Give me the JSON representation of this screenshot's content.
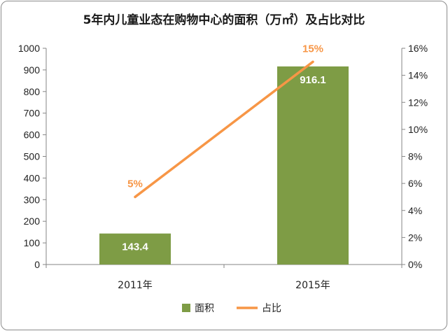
{
  "chart_data": {
    "type": "bar",
    "title": "5年内儿童业态在购物中心的面积（万㎡）及占比对比",
    "categories": [
      "2011年",
      "2015年"
    ],
    "series": [
      {
        "name": "面积",
        "type": "bar",
        "axis": "left",
        "color": "#7e9c45",
        "values": [
          143.4,
          916.1
        ],
        "labels": [
          "143.4",
          "916.1"
        ]
      },
      {
        "name": "占比",
        "type": "line",
        "axis": "right",
        "color": "#f79646",
        "values": [
          5,
          15
        ],
        "labels": [
          "5%",
          "15%"
        ]
      }
    ],
    "y_left": {
      "min": 0,
      "max": 1000,
      "step": 100,
      "ticks": [
        "0",
        "100",
        "200",
        "300",
        "400",
        "500",
        "600",
        "700",
        "800",
        "900",
        "1000"
      ]
    },
    "y_right": {
      "min": 0,
      "max": 16,
      "step": 2,
      "ticks": [
        "0%",
        "2%",
        "4%",
        "6%",
        "8%",
        "10%",
        "12%",
        "14%",
        "16%"
      ]
    },
    "grid": false,
    "legend_position": "bottom"
  }
}
